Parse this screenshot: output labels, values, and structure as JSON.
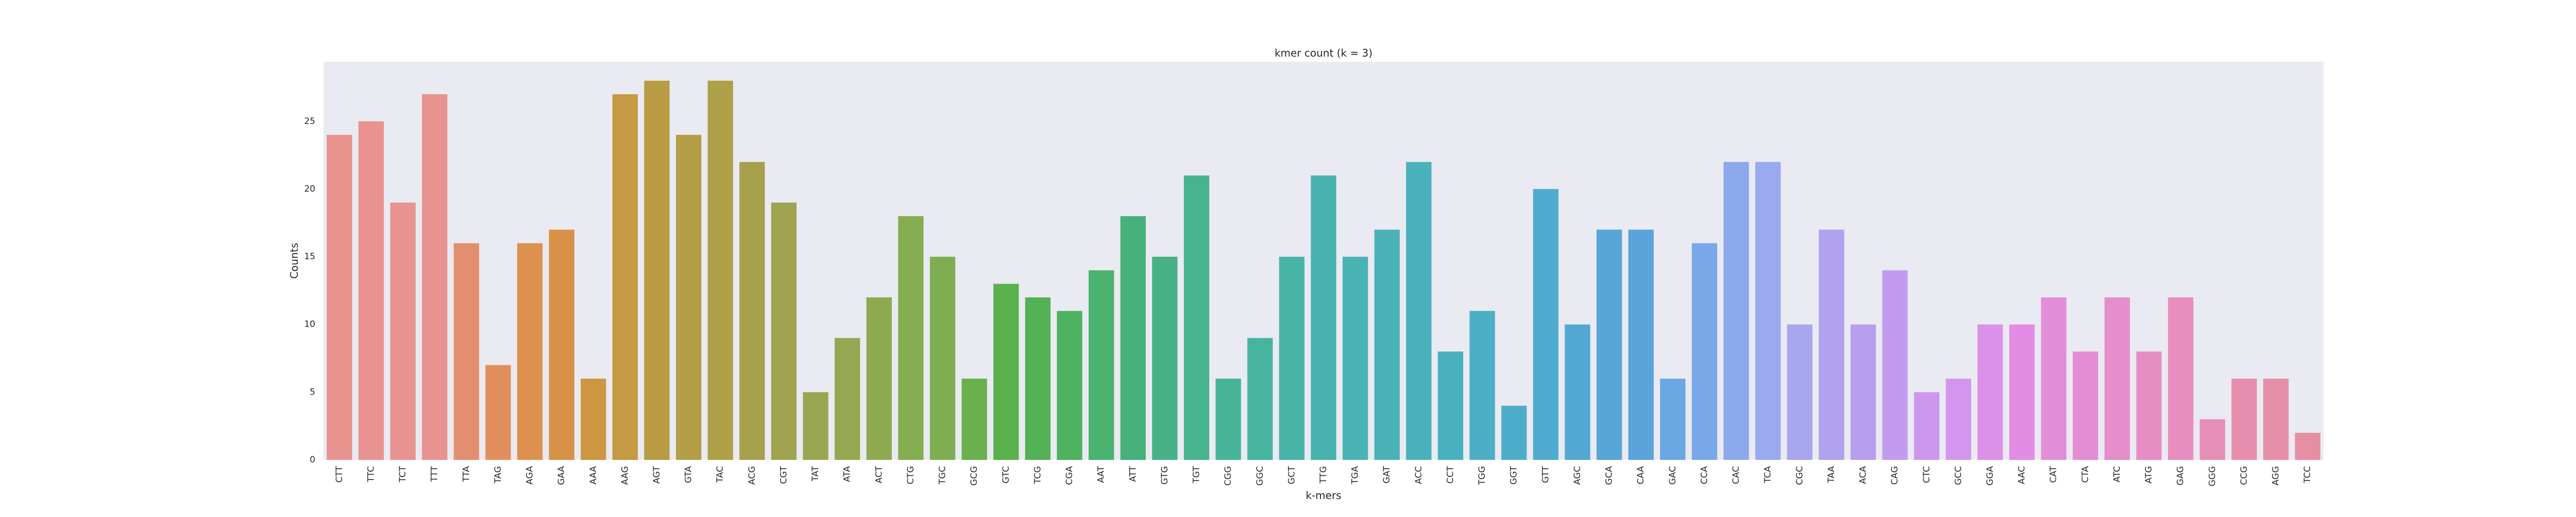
{
  "chart_data": {
    "type": "bar",
    "title": "kmer count (k = 3)",
    "xlabel": "k-mers",
    "ylabel": "Counts",
    "ylim": [
      0,
      29.4
    ],
    "yticks": [
      0,
      5,
      10,
      15,
      20,
      25
    ],
    "grid": false,
    "legend": "none",
    "background_color": "#EAEAF2",
    "categories": [
      "CTT",
      "TTC",
      "TCT",
      "TTT",
      "TTA",
      "TAG",
      "AGA",
      "GAA",
      "AAA",
      "AAG",
      "AGT",
      "GTA",
      "TAC",
      "ACG",
      "CGT",
      "TAT",
      "ATA",
      "ACT",
      "CTG",
      "TGC",
      "GCG",
      "GTC",
      "TCG",
      "CGA",
      "AAT",
      "ATT",
      "GTG",
      "TGT",
      "CGG",
      "GGC",
      "GCT",
      "TTG",
      "TGA",
      "GAT",
      "ACC",
      "CCT",
      "TGG",
      "GGT",
      "GTT",
      "AGC",
      "GCA",
      "CAA",
      "GAC",
      "CCA",
      "CAC",
      "TCA",
      "CGC",
      "TAA",
      "ACA",
      "CAG",
      "CTC",
      "GCC",
      "GGA",
      "AAC",
      "CAT",
      "CTA",
      "ATC",
      "ATG",
      "GAG",
      "GGG",
      "CCG",
      "AGG",
      "TCC"
    ],
    "values": [
      24,
      25,
      19,
      27,
      16,
      7,
      16,
      17,
      6,
      27,
      28,
      24,
      28,
      22,
      19,
      5,
      9,
      12,
      18,
      15,
      6,
      13,
      12,
      11,
      14,
      18,
      15,
      21,
      6,
      9,
      15,
      21,
      15,
      17,
      22,
      8,
      11,
      4,
      20,
      10,
      17,
      17,
      6,
      16,
      22,
      22,
      10,
      17,
      10,
      14,
      5,
      6,
      10,
      10,
      12,
      8,
      12,
      8,
      12,
      3,
      6,
      6,
      2
    ],
    "colors": [
      "#E8938F",
      "#E8938F",
      "#E8938F",
      "#E8938F",
      "#E38F6F",
      "#E08F5C",
      "#DE9050",
      "#D89247",
      "#CC9642",
      "#C49A42",
      "#B99B44",
      "#B39E47",
      "#AE9F49",
      "#A6A04C",
      "#A0A34F",
      "#9AA551",
      "#93A851",
      "#8DAA51",
      "#86AC52",
      "#7EAE51",
      "#6AB04D",
      "#5BB14E",
      "#53B156",
      "#4FB260",
      "#4BB26F",
      "#48B07B",
      "#48B186",
      "#48B38F",
      "#48B497",
      "#47B49F",
      "#48B4A8",
      "#48B3AE",
      "#4AB3B3",
      "#4BB2B8",
      "#4AB2BC",
      "#4AB1C1",
      "#4CAFC6",
      "#4DADCB",
      "#4FACCF",
      "#53A9D4",
      "#56A6D7",
      "#5BA3DB",
      "#6BA7E3",
      "#79A8E8",
      "#8BA9EC",
      "#9AAAEE",
      "#A7A6EE",
      "#B0A2EE",
      "#B89EEE",
      "#C29BEE",
      "#CB98EE",
      "#D396EC",
      "#DC91E8",
      "#E28DE3",
      "#E38ED8",
      "#E38ED2",
      "#E58ECB",
      "#E68EC4",
      "#E78EBE",
      "#E78EB6",
      "#E78EAF",
      "#E78EA8",
      "#E68EA2"
    ]
  }
}
